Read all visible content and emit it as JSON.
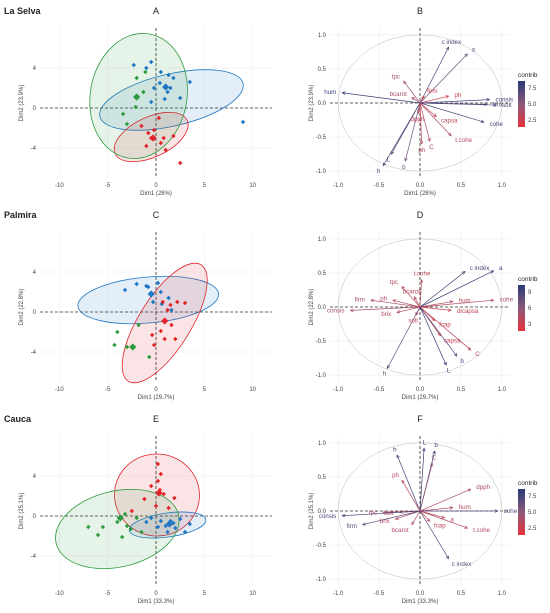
{
  "chart_data": [
    {
      "type": "scatter",
      "panel_letter": "A",
      "region_label": "La Selva",
      "xlabel": "Dim1 (28%)",
      "ylabel": "Dim2 (23.9%)",
      "xlim": [
        -12,
        12
      ],
      "ylim": [
        -7,
        8
      ],
      "xticks": [
        -10,
        -5,
        0,
        5,
        10
      ],
      "yticks": [
        -4,
        0,
        4
      ],
      "groups": [
        {
          "color": "#1f77c4",
          "points": [
            [
              -2.3,
              4.3
            ],
            [
              -1.0,
              4.0
            ],
            [
              -0.5,
              4.6
            ],
            [
              0.5,
              3.6
            ],
            [
              1.3,
              3.3
            ],
            [
              1.5,
              2.0
            ],
            [
              2.5,
              1.0
            ],
            [
              3.5,
              2.6
            ],
            [
              -0.2,
              2.0
            ],
            [
              0.4,
              2.5
            ],
            [
              0.9,
              0.9
            ],
            [
              -0.5,
              0.6
            ],
            [
              1.2,
              1.6
            ],
            [
              1.8,
              3.0
            ],
            [
              9.0,
              -1.4
            ]
          ],
          "centroid": [
            1.0,
            2.1
          ],
          "ellipse": {
            "cx": 1.6,
            "cy": 0.8,
            "rx": 7.6,
            "ry": 2.6,
            "angle": -13
          }
        },
        {
          "color": "#e0242b",
          "points": [
            [
              -0.8,
              -2.5
            ],
            [
              -0.5,
              -3.0
            ],
            [
              0.5,
              -3.5
            ],
            [
              1.0,
              -4.2
            ],
            [
              2.5,
              -5.5
            ],
            [
              -1.5,
              -1.8
            ],
            [
              0.3,
              -1.0
            ],
            [
              -0.2,
              -2.2
            ],
            [
              1.8,
              -2.8
            ],
            [
              -1.0,
              -3.8
            ],
            [
              0.8,
              -3.0
            ]
          ],
          "centroid": [
            -0.3,
            -3.0
          ],
          "ellipse": {
            "cx": -0.5,
            "cy": -2.9,
            "rx": 4.1,
            "ry": 2.0,
            "angle": -25
          }
        },
        {
          "color": "#2e9b3f",
          "points": [
            [
              -2.0,
              3.0
            ],
            [
              -1.3,
              1.6
            ],
            [
              -3.0,
              -1.6
            ],
            [
              -3.4,
              -0.6
            ],
            [
              -1.1,
              3.6
            ],
            [
              -2.1,
              0.1
            ]
          ],
          "centroid": [
            -2.0,
            1.1
          ],
          "ellipse": {
            "cx": -1.8,
            "cy": 1.2,
            "rx": 5.0,
            "ry": 6.3,
            "angle": 10
          }
        }
      ]
    },
    {
      "type": "biplot",
      "panel_letter": "B",
      "xlabel": "Dim1 (28%)",
      "ylabel": "Dim2 (23.9%)",
      "xlim": [
        -1.1,
        1.1
      ],
      "ylim": [
        -1.1,
        1.1
      ],
      "xticks": [
        -1.0,
        -0.5,
        0.0,
        0.5,
        1.0
      ],
      "yticks": [
        -1.0,
        -0.5,
        0.0,
        0.5,
        1.0
      ],
      "legend_title": "contrib",
      "legend_ticks": [
        "7.5",
        "5.0",
        "2.5"
      ],
      "contrib_range": [
        0.5,
        9.0
      ],
      "vectors": [
        {
          "name": "c index",
          "x": 0.35,
          "y": 0.82,
          "c": 7.0
        },
        {
          "name": "a",
          "x": 0.58,
          "y": 0.72,
          "c": 6.0
        },
        {
          "name": "hum",
          "x": -0.95,
          "y": 0.15,
          "c": 8.5
        },
        {
          "name": "tpc",
          "x": -0.2,
          "y": 0.32,
          "c": 4.0
        },
        {
          "name": "bcarot",
          "x": -0.1,
          "y": 0.08,
          "c": 3.5
        },
        {
          "name": "firm",
          "x": 0.05,
          "y": 0.1,
          "c": 2.0
        },
        {
          "name": "consis",
          "x": 0.85,
          "y": 0.05,
          "c": 8.0
        },
        {
          "name": "ph",
          "x": 0.35,
          "y": 0.1,
          "c": 2.0
        },
        {
          "name": "L",
          "x": -0.35,
          "y": -0.75,
          "c": 7.0
        },
        {
          "name": "h",
          "x": -0.45,
          "y": -0.92,
          "c": 7.5
        },
        {
          "name": "b",
          "x": -0.18,
          "y": -0.85,
          "c": 6.0
        },
        {
          "name": "dpph",
          "x": -0.02,
          "y": -0.15,
          "c": 2.5
        },
        {
          "name": "capsa",
          "x": 0.2,
          "y": -0.2,
          "c": 2.5
        },
        {
          "name": "C",
          "x": 0.12,
          "y": -0.56,
          "c": 3.0
        },
        {
          "name": "t.cohe",
          "x": 0.38,
          "y": -0.48,
          "c": 3.0
        },
        {
          "name": "cohe",
          "x": 0.78,
          "y": -0.28,
          "c": 7.5
        },
        {
          "name": "brix",
          "x": 0.82,
          "y": -0.02,
          "c": 7.0
        },
        {
          "name": "solt",
          "x": 0.93,
          "y": -0.03,
          "c": 7.0
        },
        {
          "name": "ph",
          "x": 0.02,
          "y": -0.6,
          "c": 2.5
        }
      ]
    },
    {
      "type": "scatter",
      "panel_letter": "C",
      "region_label": "Palmira",
      "xlabel": "Dim1 (29.7%)",
      "ylabel": "Dim2 (22.8%)",
      "xlim": [
        -12,
        12
      ],
      "ylim": [
        -7,
        8
      ],
      "xticks": [
        -10,
        -5,
        0,
        5,
        10
      ],
      "yticks": [
        -4,
        0,
        4
      ],
      "groups": [
        {
          "color": "#1f77c4",
          "points": [
            [
              -2.0,
              2.8
            ],
            [
              -1.0,
              2.6
            ],
            [
              -0.5,
              1.8
            ],
            [
              0.5,
              2.0
            ],
            [
              1.3,
              1.4
            ],
            [
              -0.3,
              1.0
            ],
            [
              0.6,
              0.8
            ],
            [
              1.6,
              0.2
            ],
            [
              -3.2,
              2.2
            ],
            [
              -0.8,
              2.5
            ],
            [
              0.2,
              2.9
            ]
          ],
          "centroid": [
            -0.5,
            1.8
          ],
          "ellipse": {
            "cx": -0.8,
            "cy": 1.2,
            "rx": 7.3,
            "ry": 2.3,
            "angle": -5
          }
        },
        {
          "color": "#e0242b",
          "points": [
            [
              0.7,
              1.0
            ],
            [
              1.5,
              0.7
            ],
            [
              2.2,
              1.0
            ],
            [
              3.0,
              0.9
            ],
            [
              0.5,
              -1.9
            ],
            [
              -0.4,
              -2.3
            ],
            [
              0.9,
              -2.7
            ],
            [
              -0.2,
              -3.3
            ],
            [
              1.6,
              -1.3
            ],
            [
              2.0,
              -2.7
            ],
            [
              1.2,
              0.2
            ]
          ],
          "centroid": [
            0.9,
            -0.9
          ],
          "ellipse": {
            "cx": 0.9,
            "cy": -1.1,
            "rx": 7.1,
            "ry": 2.6,
            "angle": -58
          }
        },
        {
          "color": "#2e9b3f",
          "points": [
            [
              -4.0,
              -2.0
            ],
            [
              -3.0,
              -3.5
            ],
            [
              -1.8,
              -1.3
            ],
            [
              -0.7,
              -4.5
            ],
            [
              -4.3,
              -3.3
            ]
          ],
          "centroid": [
            -2.4,
            -3.5
          ],
          "ellipse": null
        }
      ]
    },
    {
      "type": "biplot",
      "panel_letter": "D",
      "xlabel": "Dim1 (29.7%)",
      "ylabel": "Dim2 (22.8%)",
      "xlim": [
        -1.1,
        1.1
      ],
      "ylim": [
        -1.1,
        1.1
      ],
      "xticks": [
        -1.0,
        -0.5,
        0.0,
        0.5,
        1.0
      ],
      "yticks": [
        -1.0,
        -0.5,
        0.0,
        0.5,
        1.0
      ],
      "legend_title": "contrib",
      "legend_ticks": [
        "9",
        "6",
        "3"
      ],
      "contrib_range": [
        0.5,
        10.0
      ],
      "vectors": [
        {
          "name": "c index",
          "x": 0.55,
          "y": 0.52,
          "c": 8.0
        },
        {
          "name": "a",
          "x": 0.9,
          "y": 0.53,
          "c": 9.0
        },
        {
          "name": "t.cohe",
          "x": 0.02,
          "y": 0.4,
          "c": 3.0
        },
        {
          "name": "tpc",
          "x": -0.22,
          "y": 0.3,
          "c": 3.0
        },
        {
          "name": "bcarot",
          "x": -0.07,
          "y": 0.15,
          "c": 3.0
        },
        {
          "name": "ph",
          "x": -0.33,
          "y": 0.1,
          "c": 3.0
        },
        {
          "name": "firm",
          "x": -0.6,
          "y": 0.1,
          "c": 3.5
        },
        {
          "name": "consis",
          "x": -0.85,
          "y": -0.05,
          "c": 4.0
        },
        {
          "name": "brix",
          "x": -0.28,
          "y": -0.08,
          "c": 3.0
        },
        {
          "name": "solt",
          "x": -0.05,
          "y": -0.12,
          "c": 3.0
        },
        {
          "name": "hum",
          "x": 0.4,
          "y": 0.08,
          "c": 3.0
        },
        {
          "name": "cohe",
          "x": 0.9,
          "y": 0.1,
          "c": 3.5
        },
        {
          "name": "dicapsa",
          "x": 0.38,
          "y": -0.05,
          "c": 2.5
        },
        {
          "name": "fcap",
          "x": 0.18,
          "y": -0.2,
          "c": 2.0
        },
        {
          "name": "capsa",
          "x": 0.25,
          "y": -0.42,
          "c": 2.0
        },
        {
          "name": "C",
          "x": 0.62,
          "y": -0.63,
          "c": 3.0
        },
        {
          "name": "b",
          "x": 0.45,
          "y": -0.72,
          "c": 8.0
        },
        {
          "name": "L",
          "x": 0.32,
          "y": -0.85,
          "c": 9.0
        },
        {
          "name": "h",
          "x": -0.4,
          "y": -0.9,
          "c": 7.5
        }
      ]
    },
    {
      "type": "scatter",
      "panel_letter": "E",
      "region_label": "Cauca",
      "xlabel": "Dim1 (33.3%)",
      "ylabel": "Dim2 (25.1%)",
      "xlim": [
        -12,
        12
      ],
      "ylim": [
        -7,
        8
      ],
      "xticks": [
        -10,
        -5,
        0,
        5,
        10
      ],
      "yticks": [
        -4,
        0,
        4
      ],
      "groups": [
        {
          "color": "#e0242b",
          "points": [
            [
              0.2,
              5.2
            ],
            [
              0.5,
              4.2
            ],
            [
              0.2,
              3.5
            ],
            [
              -0.5,
              3.0
            ],
            [
              0.8,
              2.2
            ],
            [
              1.9,
              1.8
            ],
            [
              -1.2,
              1.7
            ],
            [
              0.0,
              1.0
            ],
            [
              1.3,
              0.8
            ],
            [
              -2.5,
              0.5
            ],
            [
              0.4,
              2.6
            ]
          ],
          "centroid": [
            0.3,
            2.3
          ],
          "ellipse": {
            "cx": 0.1,
            "cy": 2.1,
            "rx": 4.4,
            "ry": 4.1,
            "angle": 5
          }
        },
        {
          "color": "#1f77c4",
          "points": [
            [
              -0.5,
              -0.2
            ],
            [
              0.5,
              -0.5
            ],
            [
              1.0,
              -1.0
            ],
            [
              1.5,
              -0.5
            ],
            [
              2.0,
              -1.2
            ],
            [
              3.0,
              -1.6
            ],
            [
              3.5,
              -0.8
            ],
            [
              2.5,
              -0.3
            ],
            [
              1.2,
              -1.6
            ],
            [
              0.2,
              -1.1
            ],
            [
              1.8,
              -0.7
            ],
            [
              -1.0,
              -0.6
            ]
          ],
          "centroid": [
            1.4,
            -0.8
          ],
          "ellipse": {
            "cx": 1.2,
            "cy": -0.9,
            "rx": 4.0,
            "ry": 1.2,
            "angle": -8
          }
        },
        {
          "color": "#2e9b3f",
          "points": [
            [
              -3.5,
              -2.1
            ],
            [
              -5.5,
              -1.1
            ],
            [
              -7.0,
              -1.1
            ],
            [
              -4.0,
              -0.6
            ],
            [
              -2.0,
              -0.2
            ],
            [
              -2.6,
              -1.3
            ],
            [
              -3.0,
              -1.0
            ],
            [
              -6.0,
              -1.9
            ],
            [
              -1.5,
              -1.6
            ],
            [
              -3.2,
              0.2
            ]
          ],
          "centroid": [
            -3.7,
            -0.2
          ],
          "ellipse": {
            "cx": -4.0,
            "cy": -1.3,
            "rx": 6.5,
            "ry": 3.8,
            "angle": -13
          }
        }
      ]
    },
    {
      "type": "biplot",
      "panel_letter": "F",
      "xlabel": "Dim1 (33.3%)",
      "ylabel": "Dim2 (25.1%)",
      "xlim": [
        -1.1,
        1.1
      ],
      "ylim": [
        -1.1,
        1.1
      ],
      "xticks": [
        -1.0,
        -0.5,
        0.0,
        0.5,
        1.0
      ],
      "yticks": [
        -1.0,
        -0.5,
        0.0,
        0.5,
        1.0
      ],
      "legend_title": "contrib",
      "legend_ticks": [
        "7.5",
        "5.0",
        "2.5"
      ],
      "contrib_range": [
        0.5,
        9.0
      ],
      "vectors": [
        {
          "name": "L",
          "x": 0.05,
          "y": 0.92,
          "c": 8.5
        },
        {
          "name": "b",
          "x": 0.18,
          "y": 0.88,
          "c": 8.0
        },
        {
          "name": "h",
          "x": -0.28,
          "y": 0.82,
          "c": 8.0
        },
        {
          "name": "C",
          "x": 0.15,
          "y": 0.7,
          "c": 4.0
        },
        {
          "name": "ph",
          "x": -0.22,
          "y": 0.45,
          "c": 3.0
        },
        {
          "name": "dpph",
          "x": 0.62,
          "y": 0.32,
          "c": 3.5
        },
        {
          "name": "hum",
          "x": 0.4,
          "y": 0.05,
          "c": 3.0
        },
        {
          "name": "tpc",
          "x": -0.45,
          "y": -0.02,
          "c": 3.0
        },
        {
          "name": "solt",
          "x": -0.25,
          "y": -0.02,
          "c": 3.0
        },
        {
          "name": "brix",
          "x": -0.3,
          "y": -0.12,
          "c": 3.0
        },
        {
          "name": "bcarot",
          "x": -0.1,
          "y": -0.2,
          "c": 3.0
        },
        {
          "name": "consis",
          "x": -0.95,
          "y": -0.07,
          "c": 7.5
        },
        {
          "name": "firm",
          "x": -0.7,
          "y": -0.2,
          "c": 7.0
        },
        {
          "name": "fcap",
          "x": 0.12,
          "y": -0.15,
          "c": 2.5
        },
        {
          "name": "a",
          "x": 0.3,
          "y": -0.1,
          "c": 2.5
        },
        {
          "name": "cohe",
          "x": 0.95,
          "y": 0.0,
          "c": 7.0
        },
        {
          "name": "t.cohe",
          "x": 0.58,
          "y": -0.25,
          "c": 3.0
        },
        {
          "name": "c index",
          "x": 0.35,
          "y": -0.7,
          "c": 7.0
        }
      ]
    }
  ]
}
